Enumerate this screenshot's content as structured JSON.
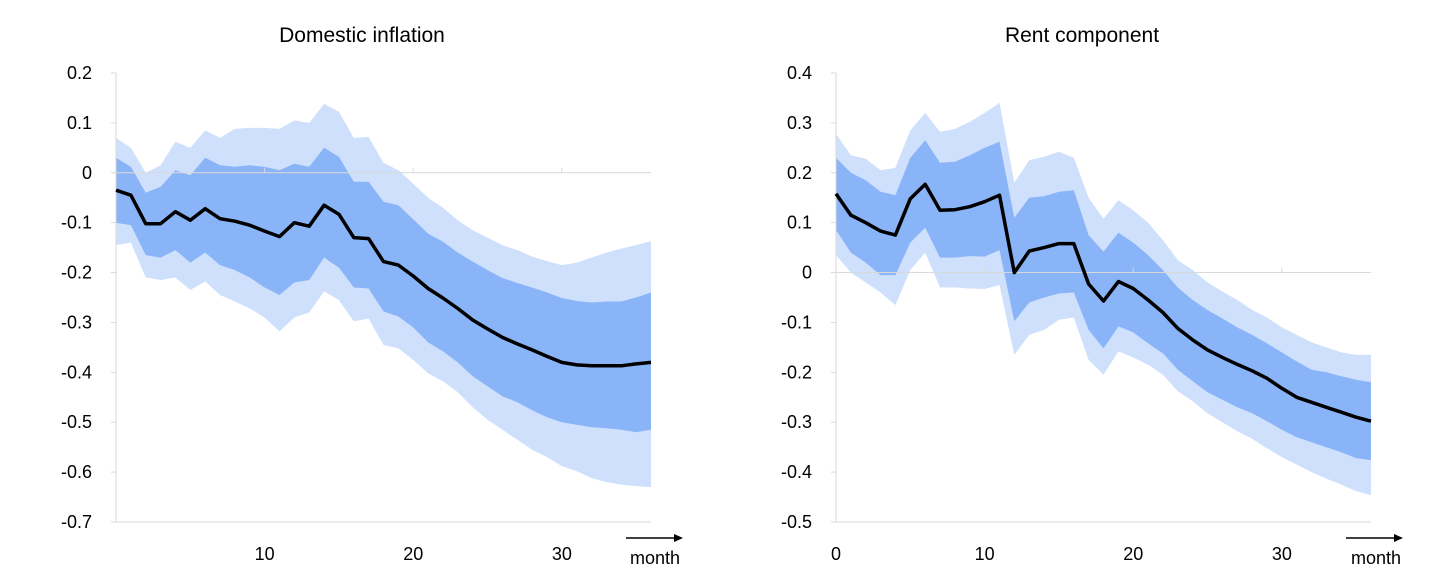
{
  "charts": [
    {
      "title": "Domestic inflation",
      "xlabel": "month",
      "chart_data": {
        "type": "area",
        "title": "Domestic inflation",
        "xlabel": "month",
        "ylabel": "",
        "x": [
          0,
          1,
          2,
          3,
          4,
          5,
          6,
          7,
          8,
          9,
          10,
          11,
          12,
          13,
          14,
          15,
          16,
          17,
          18,
          19,
          20,
          21,
          22,
          23,
          24,
          25,
          26,
          27,
          28,
          29,
          30,
          31,
          32,
          33,
          34,
          35,
          36
        ],
        "xlim": [
          0,
          36
        ],
        "ylim": [
          -0.7,
          0.2
        ],
        "yticks": [
          0.2,
          0.1,
          0,
          -0.1,
          -0.2,
          -0.3,
          -0.4,
          -0.5,
          -0.6,
          -0.7
        ],
        "ytick_labels": [
          "0.2",
          "0.1",
          "0",
          "-0.1",
          "-0.2",
          "-0.3",
          "-0.4",
          "-0.5",
          "-0.6",
          "-0.7"
        ],
        "xticks": [
          10,
          20,
          30
        ],
        "xtick_labels": [
          "10",
          "20",
          "30"
        ],
        "median": [
          -0.035,
          -0.045,
          -0.102,
          -0.102,
          -0.078,
          -0.095,
          -0.072,
          -0.092,
          -0.097,
          -0.105,
          -0.117,
          -0.128,
          -0.1,
          -0.107,
          -0.065,
          -0.083,
          -0.13,
          -0.132,
          -0.178,
          -0.185,
          -0.207,
          -0.232,
          -0.251,
          -0.272,
          -0.295,
          -0.313,
          -0.33,
          -0.343,
          -0.355,
          -0.368,
          -0.38,
          -0.385,
          -0.387,
          -0.387,
          -0.387,
          -0.383,
          -0.38
        ],
        "inner_upper": [
          0.03,
          0.012,
          -0.04,
          -0.028,
          0.005,
          -0.005,
          0.03,
          0.015,
          0.012,
          0.015,
          0.012,
          0.005,
          0.018,
          0.012,
          0.05,
          0.032,
          -0.018,
          -0.018,
          -0.058,
          -0.065,
          -0.093,
          -0.122,
          -0.138,
          -0.16,
          -0.178,
          -0.195,
          -0.211,
          -0.221,
          -0.23,
          -0.24,
          -0.251,
          -0.257,
          -0.26,
          -0.258,
          -0.258,
          -0.25,
          -0.24
        ],
        "inner_lower": [
          -0.1,
          -0.105,
          -0.165,
          -0.17,
          -0.155,
          -0.18,
          -0.16,
          -0.185,
          -0.195,
          -0.21,
          -0.23,
          -0.245,
          -0.22,
          -0.215,
          -0.17,
          -0.19,
          -0.23,
          -0.232,
          -0.278,
          -0.288,
          -0.31,
          -0.34,
          -0.358,
          -0.38,
          -0.408,
          -0.428,
          -0.448,
          -0.46,
          -0.476,
          -0.49,
          -0.5,
          -0.505,
          -0.51,
          -0.512,
          -0.515,
          -0.52,
          -0.515
        ],
        "outer_upper": [
          0.07,
          0.05,
          0.0,
          0.015,
          0.062,
          0.05,
          0.085,
          0.07,
          0.088,
          0.09,
          0.09,
          0.088,
          0.105,
          0.1,
          0.138,
          0.122,
          0.07,
          0.072,
          0.02,
          0.005,
          -0.022,
          -0.05,
          -0.07,
          -0.095,
          -0.115,
          -0.13,
          -0.145,
          -0.155,
          -0.168,
          -0.177,
          -0.185,
          -0.18,
          -0.17,
          -0.16,
          -0.152,
          -0.145,
          -0.137
        ],
        "outer_lower": [
          -0.145,
          -0.14,
          -0.21,
          -0.215,
          -0.21,
          -0.235,
          -0.218,
          -0.245,
          -0.258,
          -0.272,
          -0.29,
          -0.318,
          -0.29,
          -0.28,
          -0.238,
          -0.255,
          -0.298,
          -0.292,
          -0.345,
          -0.352,
          -0.375,
          -0.402,
          -0.418,
          -0.44,
          -0.47,
          -0.495,
          -0.515,
          -0.535,
          -0.555,
          -0.57,
          -0.588,
          -0.598,
          -0.612,
          -0.62,
          -0.625,
          -0.628,
          -0.63
        ],
        "colors": {
          "median": "#000000",
          "inner_band": "#8ab4f8",
          "outer_band": "#cfe0fc"
        },
        "grid": false,
        "legend": "none"
      }
    },
    {
      "title": "Rent component",
      "xlabel": "month",
      "chart_data": {
        "type": "area",
        "title": "Rent component",
        "xlabel": "month",
        "ylabel": "",
        "x": [
          0,
          1,
          2,
          3,
          4,
          5,
          6,
          7,
          8,
          9,
          10,
          11,
          12,
          13,
          14,
          15,
          16,
          17,
          18,
          19,
          20,
          21,
          22,
          23,
          24,
          25,
          26,
          27,
          28,
          29,
          30,
          31,
          32,
          33,
          34,
          35,
          36
        ],
        "xlim": [
          0,
          36
        ],
        "ylim": [
          -0.5,
          0.4
        ],
        "yticks": [
          0.4,
          0.3,
          0.2,
          0.1,
          0,
          -0.1,
          -0.2,
          -0.3,
          -0.4,
          -0.5
        ],
        "ytick_labels": [
          "0.4",
          "0.3",
          "0.2",
          "0.1",
          "0",
          "-0.1",
          "-0.2",
          "-0.3",
          "-0.4",
          "-0.5"
        ],
        "xticks": [
          0,
          10,
          20,
          30
        ],
        "xtick_labels": [
          "0",
          "10",
          "20",
          "30"
        ],
        "median": [
          0.158,
          0.115,
          0.1,
          0.083,
          0.075,
          0.148,
          0.177,
          0.125,
          0.126,
          0.132,
          0.142,
          0.155,
          0.0,
          0.043,
          0.05,
          0.058,
          0.058,
          -0.023,
          -0.057,
          -0.018,
          -0.032,
          -0.055,
          -0.08,
          -0.112,
          -0.135,
          -0.155,
          -0.17,
          -0.184,
          -0.197,
          -0.212,
          -0.232,
          -0.25,
          -0.26,
          -0.27,
          -0.28,
          -0.29,
          -0.298
        ],
        "inner_upper": [
          0.23,
          0.2,
          0.185,
          0.162,
          0.155,
          0.23,
          0.265,
          0.22,
          0.222,
          0.235,
          0.25,
          0.262,
          0.11,
          0.15,
          0.153,
          0.162,
          0.165,
          0.075,
          0.042,
          0.08,
          0.06,
          0.035,
          0.005,
          -0.03,
          -0.055,
          -0.075,
          -0.092,
          -0.11,
          -0.125,
          -0.142,
          -0.16,
          -0.178,
          -0.195,
          -0.2,
          -0.208,
          -0.215,
          -0.22
        ],
        "inner_lower": [
          0.085,
          0.04,
          0.02,
          -0.005,
          -0.005,
          0.06,
          0.09,
          0.03,
          0.03,
          0.033,
          0.032,
          0.045,
          -0.098,
          -0.06,
          -0.05,
          -0.042,
          -0.04,
          -0.115,
          -0.152,
          -0.108,
          -0.12,
          -0.142,
          -0.162,
          -0.195,
          -0.218,
          -0.24,
          -0.255,
          -0.27,
          -0.282,
          -0.298,
          -0.315,
          -0.33,
          -0.34,
          -0.35,
          -0.36,
          -0.372,
          -0.376
        ],
        "outer_upper": [
          0.278,
          0.235,
          0.228,
          0.205,
          0.21,
          0.285,
          0.32,
          0.282,
          0.288,
          0.302,
          0.32,
          0.34,
          0.18,
          0.225,
          0.232,
          0.242,
          0.23,
          0.15,
          0.108,
          0.145,
          0.125,
          0.1,
          0.065,
          0.025,
          0.005,
          -0.02,
          -0.038,
          -0.055,
          -0.075,
          -0.09,
          -0.11,
          -0.125,
          -0.14,
          -0.15,
          -0.16,
          -0.165,
          -0.165
        ],
        "outer_lower": [
          0.035,
          0.0,
          -0.02,
          -0.04,
          -0.065,
          0.005,
          0.04,
          -0.03,
          -0.03,
          -0.032,
          -0.033,
          -0.025,
          -0.165,
          -0.125,
          -0.115,
          -0.095,
          -0.09,
          -0.175,
          -0.205,
          -0.158,
          -0.17,
          -0.185,
          -0.205,
          -0.238,
          -0.258,
          -0.282,
          -0.3,
          -0.318,
          -0.333,
          -0.352,
          -0.37,
          -0.385,
          -0.4,
          -0.413,
          -0.425,
          -0.438,
          -0.446
        ],
        "colors": {
          "median": "#000000",
          "inner_band": "#8ab4f8",
          "outer_band": "#cfe0fc"
        },
        "grid": false,
        "legend": "none"
      }
    }
  ]
}
